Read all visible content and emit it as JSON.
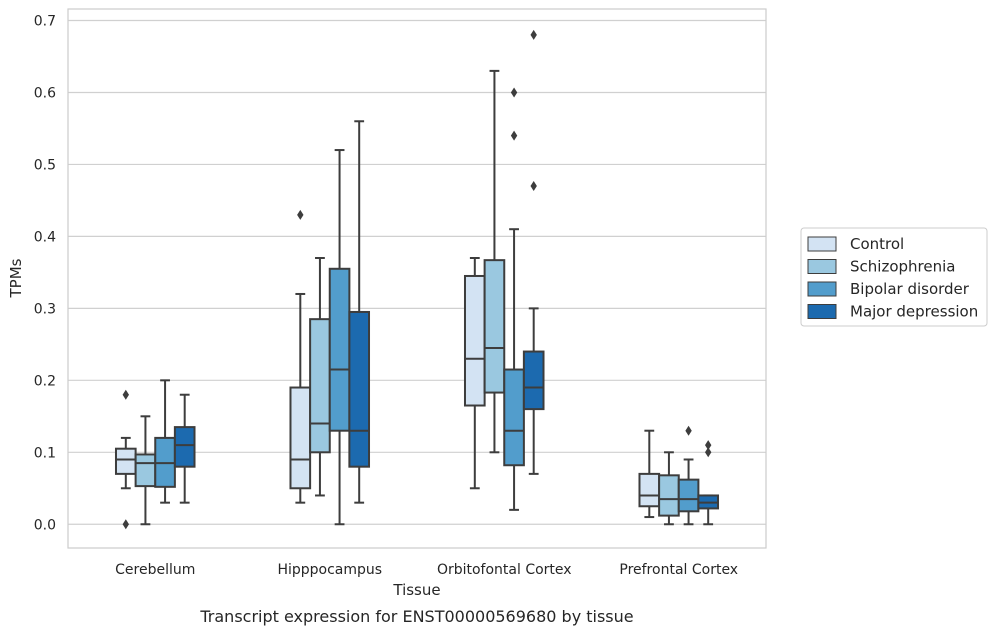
{
  "chart_data": {
    "type": "box",
    "title": "",
    "xlabel": "Tissue",
    "ylabel": "TPMs",
    "caption": "Transcript expression for ENST00000569680 by tissue",
    "ylim": [
      -0.033,
      0.716
    ],
    "yticks": [
      0.0,
      0.1,
      0.2,
      0.3,
      0.4,
      0.5,
      0.6,
      0.7
    ],
    "ytick_labels": [
      "0.0",
      "0.1",
      "0.2",
      "0.3",
      "0.4",
      "0.5",
      "0.6",
      "0.7"
    ],
    "grid": "horizontal",
    "legend_position": "right",
    "categories": [
      "Cerebellum",
      "Hipppocampus",
      "Orbitofontal Cortex",
      "Prefrontal Cortex"
    ],
    "series": [
      {
        "name": "Control",
        "color": "#d3e3f3",
        "boxes": [
          {
            "whislo": 0.05,
            "q1": 0.07,
            "med": 0.09,
            "q3": 0.105,
            "whishi": 0.12,
            "fliers": [
              0.18,
              0.0
            ]
          },
          {
            "whislo": 0.03,
            "q1": 0.05,
            "med": 0.09,
            "q3": 0.19,
            "whishi": 0.32,
            "fliers": [
              0.43
            ]
          },
          {
            "whislo": 0.05,
            "q1": 0.165,
            "med": 0.23,
            "q3": 0.345,
            "whishi": 0.37,
            "fliers": []
          },
          {
            "whislo": 0.01,
            "q1": 0.025,
            "med": 0.04,
            "q3": 0.07,
            "whishi": 0.13,
            "fliers": []
          }
        ]
      },
      {
        "name": "Schizophrenia",
        "color": "#9ac8e0",
        "boxes": [
          {
            "whislo": 0.0,
            "q1": 0.053,
            "med": 0.085,
            "q3": 0.097,
            "whishi": 0.15,
            "fliers": []
          },
          {
            "whislo": 0.04,
            "q1": 0.1,
            "med": 0.14,
            "q3": 0.285,
            "whishi": 0.37,
            "fliers": []
          },
          {
            "whislo": 0.1,
            "q1": 0.183,
            "med": 0.245,
            "q3": 0.367,
            "whishi": 0.63,
            "fliers": []
          },
          {
            "whislo": 0.0,
            "q1": 0.012,
            "med": 0.035,
            "q3": 0.068,
            "whishi": 0.1,
            "fliers": []
          }
        ]
      },
      {
        "name": "Bipolar disorder",
        "color": "#529dcc",
        "boxes": [
          {
            "whislo": 0.03,
            "q1": 0.052,
            "med": 0.085,
            "q3": 0.12,
            "whishi": 0.2,
            "fliers": []
          },
          {
            "whislo": 0.0,
            "q1": 0.13,
            "med": 0.215,
            "q3": 0.355,
            "whishi": 0.52,
            "fliers": []
          },
          {
            "whislo": 0.02,
            "q1": 0.082,
            "med": 0.13,
            "q3": 0.215,
            "whishi": 0.41,
            "fliers": [
              0.6,
              0.54
            ]
          },
          {
            "whislo": 0.0,
            "q1": 0.018,
            "med": 0.035,
            "q3": 0.062,
            "whishi": 0.09,
            "fliers": [
              0.13
            ]
          }
        ]
      },
      {
        "name": "Major depression",
        "color": "#1c6aaf",
        "boxes": [
          {
            "whislo": 0.03,
            "q1": 0.08,
            "med": 0.11,
            "q3": 0.135,
            "whishi": 0.18,
            "fliers": []
          },
          {
            "whislo": 0.03,
            "q1": 0.08,
            "med": 0.13,
            "q3": 0.295,
            "whishi": 0.56,
            "fliers": []
          },
          {
            "whislo": 0.07,
            "q1": 0.16,
            "med": 0.19,
            "q3": 0.24,
            "whishi": 0.3,
            "fliers": [
              0.68,
              0.47
            ]
          },
          {
            "whislo": 0.0,
            "q1": 0.022,
            "med": 0.03,
            "q3": 0.04,
            "whishi": 0.04,
            "fliers": [
              0.11,
              0.1
            ]
          }
        ]
      }
    ]
  }
}
